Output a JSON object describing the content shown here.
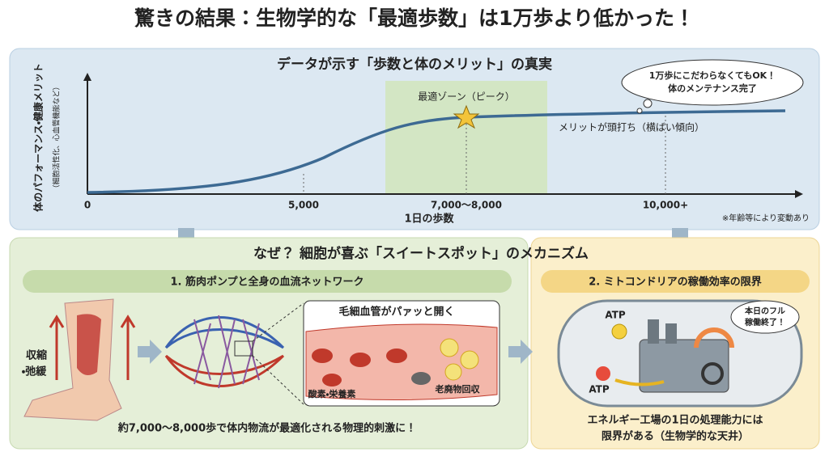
{
  "header": {
    "title": "驚きの結果：生物学的な「最適歩数」は1万歩より低かった！"
  },
  "top_panel": {
    "title": "データが示す「歩数と体のメリット」の真実",
    "y_label": "体のパフォーマンス・健康メリット",
    "y_sublabel": "（細胞活性化、心血管機能など）",
    "x_label": "1日の歩数",
    "x_labels": [
      "0",
      "5,000",
      "7,000〜8,000",
      "10,000+"
    ],
    "zone_label": "最適ゾーン（ピーク）",
    "plateau_label": "メリットが頭打ち（横ばい傾向）",
    "note": "※年齢等により変動あり",
    "bubble": [
      "1万歩にこだわらなくてもOK！",
      "体のメンテナンス完了"
    ]
  },
  "mechanism": {
    "title": "なぜ？ 細胞が喜ぶ「スイートスポット」のメカニズム",
    "left": {
      "heading": "1. 筋肉ポンプと全身の血流ネットワーク",
      "leg_label": [
        "収縮",
        "・弛緩"
      ],
      "inset_title": "毛細血管がパァッと開く",
      "oxygen": "酸素・栄養素",
      "waste": "老廃物回収",
      "caption": "約7,000〜8,000歩で体内物流が最適化される物理的刺激に！"
    },
    "right": {
      "heading": "2. ミトコンドリアの稼働効率の限界",
      "atp": [
        "ATP",
        "ATP"
      ],
      "bubble": [
        "本日のフル",
        "稼働終了！"
      ],
      "caption": [
        "エネルギー工場の1日の処理能力には",
        "限界がある（生物学的な天井）"
      ]
    }
  }
}
